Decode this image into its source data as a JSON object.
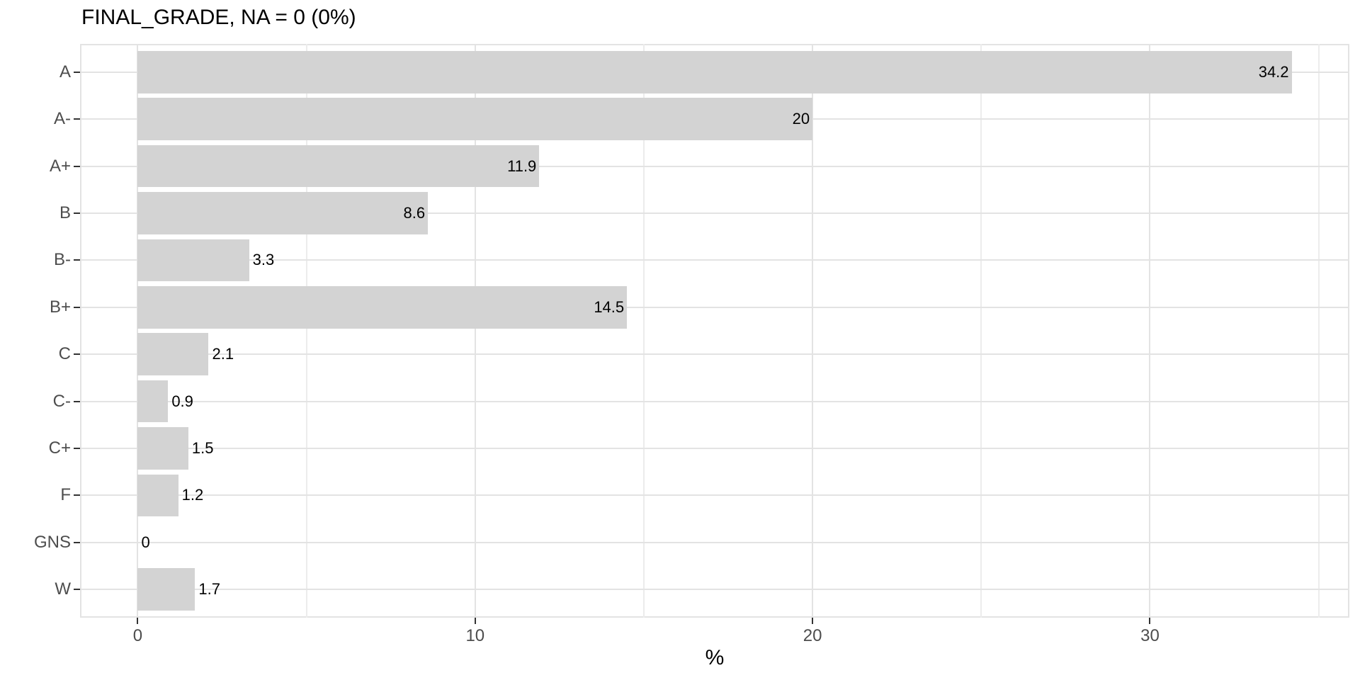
{
  "title": "FINAL_GRADE, NA = 0 (0%)",
  "colors": {
    "bar_fill": "#d3d3d3",
    "grid_major": "#e3e3e3",
    "grid_minor": "#ececec",
    "panel_border": "#e3e3e3",
    "tick_mark": "#333333",
    "axis_text": "#4d4d4d",
    "title_text": "#000000",
    "value_label_text": "#000000",
    "background": "#ffffff"
  },
  "chart_data": {
    "type": "bar",
    "orientation": "horizontal",
    "title": "FINAL_GRADE, NA = 0 (0%)",
    "categories": [
      "A",
      "A-",
      "A+",
      "B",
      "B-",
      "B+",
      "C",
      "C-",
      "C+",
      "F",
      "GNS",
      "W"
    ],
    "values": [
      34.2,
      20,
      11.9,
      8.6,
      3.3,
      14.5,
      2.1,
      0.9,
      1.5,
      1.2,
      0,
      1.7
    ],
    "bar_labels": [
      "34.2",
      "20",
      "11.9",
      "8.6",
      "3.3",
      "14.5",
      "2.1",
      "0.9",
      "1.5",
      "1.2",
      "0",
      "1.7"
    ],
    "xlabel": "%",
    "ylabel": "",
    "x_major_ticks": [
      0,
      10,
      20,
      30
    ],
    "x_major_tick_labels": [
      "0",
      "10",
      "20",
      "30"
    ],
    "x_minor_ticks": [
      5,
      15,
      25,
      35
    ],
    "xlim": [
      -1.71,
      35.91
    ],
    "bar_width_fraction": 0.9,
    "grid": true,
    "legend_position": "none",
    "label_inside_threshold": 5
  }
}
